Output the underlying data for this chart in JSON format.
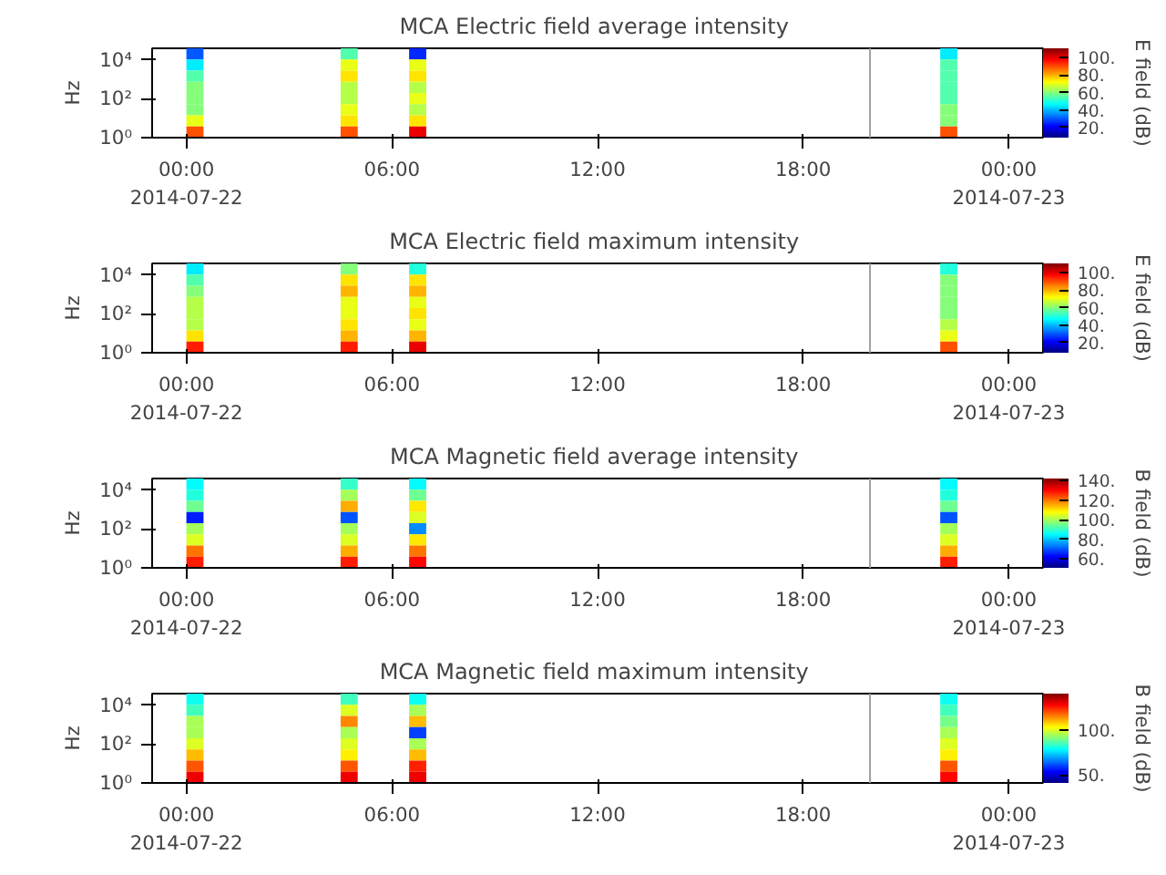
{
  "chart_data": [
    {
      "type": "heatmap",
      "title": "MCA  Electric field average intensity",
      "ylabel": "Hz",
      "clabel": "E field (dB)",
      "log": "y",
      "grid": false,
      "x": [
        -0.75,
        -0.25,
        0.25,
        0.75,
        1.25,
        1.75,
        2.25,
        2.75,
        3.25,
        3.75,
        4.25,
        4.75,
        5.25,
        5.75,
        6.25,
        6.75,
        7.25,
        7.75,
        8.25,
        8.75,
        9.25,
        9.75,
        10.25,
        10.75,
        11.25,
        11.75,
        12.25,
        12.75,
        13.25,
        13.75,
        14.25,
        14.75,
        15.25,
        15.75,
        16.25,
        16.75,
        17.25,
        17.75,
        18.25,
        18.75,
        19.25,
        19.75,
        20.25,
        20.75,
        21.25,
        21.75,
        22.25,
        22.75,
        23.25,
        23.75,
        24.25,
        24.75
      ],
      "xlim": [
        -1,
        25
      ],
      "xticks": [
        {
          "value": 0,
          "label": "00:00\n2014-07-22"
        },
        {
          "value": 6,
          "label": "06:00"
        },
        {
          "value": 12,
          "label": "12:00"
        },
        {
          "value": 18,
          "label": "18:00"
        },
        {
          "value": 24,
          "label": "00:00\n2014-07-23"
        }
      ],
      "ylim": [
        1,
        40000
      ],
      "yticks": [
        {
          "value": 1,
          "label": "10⁰"
        },
        {
          "value": 100,
          "label": "10²"
        },
        {
          "value": 10000,
          "label": "10⁴"
        }
      ],
      "clim": [
        8,
        111
      ],
      "cticks": [
        {
          "value": 20,
          "label": "20."
        },
        {
          "value": 40,
          "label": "40."
        },
        {
          "value": 60,
          "label": "60."
        },
        {
          "value": 80,
          "label": "80."
        },
        {
          "value": 100,
          "label": "100."
        }
      ],
      "ref_lines": [
        {
          "axis": "x",
          "value": 19.95,
          "color": "#a0a0a0"
        }
      ],
      "cells": [
        [
          null,
          null,
          30,
          null,
          null,
          null,
          null,
          null,
          null,
          null,
          null,
          55,
          null,
          null,
          null,
          25,
          null,
          null,
          null,
          null,
          null,
          null,
          null,
          null,
          null,
          null,
          null,
          null,
          null,
          null,
          null,
          null,
          null,
          null,
          null,
          null,
          null,
          null,
          null,
          null,
          null,
          null,
          null,
          null,
          null,
          null,
          45,
          null,
          null,
          null,
          null,
          null
        ],
        [
          null,
          null,
          45,
          null,
          null,
          null,
          null,
          null,
          null,
          null,
          null,
          70,
          null,
          null,
          null,
          70,
          null,
          null,
          null,
          null,
          null,
          null,
          null,
          null,
          null,
          null,
          null,
          null,
          null,
          null,
          null,
          null,
          null,
          null,
          null,
          null,
          null,
          null,
          null,
          null,
          null,
          null,
          null,
          null,
          null,
          null,
          55,
          null,
          null,
          null,
          null,
          null
        ],
        [
          null,
          null,
          55,
          null,
          null,
          null,
          null,
          null,
          null,
          null,
          null,
          75,
          null,
          null,
          null,
          75,
          null,
          null,
          null,
          null,
          null,
          null,
          null,
          null,
          null,
          null,
          null,
          null,
          null,
          null,
          null,
          null,
          null,
          null,
          null,
          null,
          null,
          null,
          null,
          null,
          null,
          null,
          null,
          null,
          null,
          null,
          55,
          null,
          null,
          null,
          null,
          null
        ],
        [
          null,
          null,
          60,
          null,
          null,
          null,
          null,
          null,
          null,
          null,
          null,
          65,
          null,
          null,
          null,
          65,
          null,
          null,
          null,
          null,
          null,
          null,
          null,
          null,
          null,
          null,
          null,
          null,
          null,
          null,
          null,
          null,
          null,
          null,
          null,
          null,
          null,
          null,
          null,
          null,
          null,
          null,
          null,
          null,
          null,
          null,
          55,
          null,
          null,
          null,
          null,
          null
        ],
        [
          null,
          null,
          60,
          null,
          null,
          null,
          null,
          null,
          null,
          null,
          null,
          65,
          null,
          null,
          null,
          70,
          null,
          null,
          null,
          null,
          null,
          null,
          null,
          null,
          null,
          null,
          null,
          null,
          null,
          null,
          null,
          null,
          null,
          null,
          null,
          null,
          null,
          null,
          null,
          null,
          null,
          null,
          null,
          null,
          null,
          null,
          55,
          null,
          null,
          null,
          null,
          null
        ],
        [
          null,
          null,
          60,
          null,
          null,
          null,
          null,
          null,
          null,
          null,
          null,
          70,
          null,
          null,
          null,
          65,
          null,
          null,
          null,
          null,
          null,
          null,
          null,
          null,
          null,
          null,
          null,
          null,
          null,
          null,
          null,
          null,
          null,
          null,
          null,
          null,
          null,
          null,
          null,
          null,
          null,
          null,
          null,
          null,
          null,
          null,
          60,
          null,
          null,
          null,
          null,
          null
        ],
        [
          null,
          null,
          70,
          null,
          null,
          null,
          null,
          null,
          null,
          null,
          null,
          75,
          null,
          null,
          null,
          75,
          null,
          null,
          null,
          null,
          null,
          null,
          null,
          null,
          null,
          null,
          null,
          null,
          null,
          null,
          null,
          null,
          null,
          null,
          null,
          null,
          null,
          null,
          null,
          null,
          null,
          null,
          null,
          null,
          null,
          null,
          60,
          null,
          null,
          null,
          null,
          null
        ],
        [
          null,
          null,
          90,
          null,
          null,
          null,
          null,
          null,
          null,
          null,
          null,
          90,
          null,
          null,
          null,
          100,
          null,
          null,
          null,
          null,
          null,
          null,
          null,
          null,
          null,
          null,
          null,
          null,
          null,
          null,
          null,
          null,
          null,
          null,
          null,
          null,
          null,
          null,
          null,
          null,
          null,
          null,
          null,
          null,
          null,
          null,
          90,
          null,
          null,
          null,
          null,
          null
        ]
      ]
    },
    {
      "type": "heatmap",
      "title": "MCA  Electric field maximum intensity",
      "ylabel": "Hz",
      "clabel": "E field (dB)",
      "log": "y",
      "grid": false,
      "x": [
        -0.75,
        -0.25,
        0.25,
        0.75,
        1.25,
        1.75,
        2.25,
        2.75,
        3.25,
        3.75,
        4.25,
        4.75,
        5.25,
        5.75,
        6.25,
        6.75,
        7.25,
        7.75,
        8.25,
        8.75,
        9.25,
        9.75,
        10.25,
        10.75,
        11.25,
        11.75,
        12.25,
        12.75,
        13.25,
        13.75,
        14.25,
        14.75,
        15.25,
        15.75,
        16.25,
        16.75,
        17.25,
        17.75,
        18.25,
        18.75,
        19.25,
        19.75,
        20.25,
        20.75,
        21.25,
        21.75,
        22.25,
        22.75,
        23.25,
        23.75,
        24.25,
        24.75
      ],
      "xlim": [
        -1,
        25
      ],
      "xticks": [
        {
          "value": 0,
          "label": "00:00\n2014-07-22"
        },
        {
          "value": 6,
          "label": "06:00"
        },
        {
          "value": 12,
          "label": "12:00"
        },
        {
          "value": 18,
          "label": "18:00"
        },
        {
          "value": 24,
          "label": "00:00\n2014-07-23"
        }
      ],
      "ylim": [
        1,
        40000
      ],
      "yticks": [
        {
          "value": 1,
          "label": "10⁰"
        },
        {
          "value": 100,
          "label": "10²"
        },
        {
          "value": 10000,
          "label": "10⁴"
        }
      ],
      "clim": [
        8,
        111
      ],
      "cticks": [
        {
          "value": 20,
          "label": "20."
        },
        {
          "value": 40,
          "label": "40."
        },
        {
          "value": 60,
          "label": "60."
        },
        {
          "value": 80,
          "label": "80."
        },
        {
          "value": 100,
          "label": "100."
        }
      ],
      "ref_lines": [
        {
          "axis": "x",
          "value": 19.95,
          "color": "#a0a0a0"
        }
      ],
      "cells": [
        [
          null,
          null,
          45,
          null,
          null,
          null,
          null,
          null,
          null,
          null,
          null,
          60,
          null,
          null,
          null,
          50,
          null,
          null,
          null,
          null,
          null,
          null,
          null,
          null,
          null,
          null,
          null,
          null,
          null,
          null,
          null,
          null,
          null,
          null,
          null,
          null,
          null,
          null,
          null,
          null,
          null,
          null,
          null,
          null,
          null,
          null,
          50,
          null,
          null,
          null,
          null,
          null
        ],
        [
          null,
          null,
          55,
          null,
          null,
          null,
          null,
          null,
          null,
          null,
          null,
          75,
          null,
          null,
          null,
          75,
          null,
          null,
          null,
          null,
          null,
          null,
          null,
          null,
          null,
          null,
          null,
          null,
          null,
          null,
          null,
          null,
          null,
          null,
          null,
          null,
          null,
          null,
          null,
          null,
          null,
          null,
          null,
          null,
          null,
          null,
          60,
          null,
          null,
          null,
          null,
          null
        ],
        [
          null,
          null,
          60,
          null,
          null,
          null,
          null,
          null,
          null,
          null,
          null,
          80,
          null,
          null,
          null,
          80,
          null,
          null,
          null,
          null,
          null,
          null,
          null,
          null,
          null,
          null,
          null,
          null,
          null,
          null,
          null,
          null,
          null,
          null,
          null,
          null,
          null,
          null,
          null,
          null,
          null,
          null,
          null,
          null,
          null,
          null,
          60,
          null,
          null,
          null,
          null,
          null
        ],
        [
          null,
          null,
          65,
          null,
          null,
          null,
          null,
          null,
          null,
          null,
          null,
          70,
          null,
          null,
          null,
          70,
          null,
          null,
          null,
          null,
          null,
          null,
          null,
          null,
          null,
          null,
          null,
          null,
          null,
          null,
          null,
          null,
          null,
          null,
          null,
          null,
          null,
          null,
          null,
          null,
          null,
          null,
          null,
          null,
          null,
          null,
          60,
          null,
          null,
          null,
          null,
          null
        ],
        [
          null,
          null,
          65,
          null,
          null,
          null,
          null,
          null,
          null,
          null,
          null,
          70,
          null,
          null,
          null,
          75,
          null,
          null,
          null,
          null,
          null,
          null,
          null,
          null,
          null,
          null,
          null,
          null,
          null,
          null,
          null,
          null,
          null,
          null,
          null,
          null,
          null,
          null,
          null,
          null,
          null,
          null,
          null,
          null,
          null,
          null,
          60,
          null,
          null,
          null,
          null,
          null
        ],
        [
          null,
          null,
          65,
          null,
          null,
          null,
          null,
          null,
          null,
          null,
          null,
          75,
          null,
          null,
          null,
          70,
          null,
          null,
          null,
          null,
          null,
          null,
          null,
          null,
          null,
          null,
          null,
          null,
          null,
          null,
          null,
          null,
          null,
          null,
          null,
          null,
          null,
          null,
          null,
          null,
          null,
          null,
          null,
          null,
          null,
          null,
          65,
          null,
          null,
          null,
          null,
          null
        ],
        [
          null,
          null,
          75,
          null,
          null,
          null,
          null,
          null,
          null,
          null,
          null,
          80,
          null,
          null,
          null,
          80,
          null,
          null,
          null,
          null,
          null,
          null,
          null,
          null,
          null,
          null,
          null,
          null,
          null,
          null,
          null,
          null,
          null,
          null,
          null,
          null,
          null,
          null,
          null,
          null,
          null,
          null,
          null,
          null,
          null,
          null,
          70,
          null,
          null,
          null,
          null,
          null
        ],
        [
          null,
          null,
          95,
          null,
          null,
          null,
          null,
          null,
          null,
          null,
          null,
          95,
          null,
          null,
          null,
          100,
          null,
          null,
          null,
          null,
          null,
          null,
          null,
          null,
          null,
          null,
          null,
          null,
          null,
          null,
          null,
          null,
          null,
          null,
          null,
          null,
          null,
          null,
          null,
          null,
          null,
          null,
          null,
          null,
          null,
          null,
          90,
          null,
          null,
          null,
          null,
          null
        ]
      ]
    },
    {
      "type": "heatmap",
      "title": "MCA  Magnetic field average intensity",
      "ylabel": "Hz",
      "clabel": "B field (dB)",
      "log": "y",
      "grid": false,
      "x": [
        -0.75,
        -0.25,
        0.25,
        0.75,
        1.25,
        1.75,
        2.25,
        2.75,
        3.25,
        3.75,
        4.25,
        4.75,
        5.25,
        5.75,
        6.25,
        6.75,
        7.25,
        7.75,
        8.25,
        8.75,
        9.25,
        9.75,
        10.25,
        10.75,
        11.25,
        11.75,
        12.25,
        12.75,
        13.25,
        13.75,
        14.25,
        14.75,
        15.25,
        15.75,
        16.25,
        16.75,
        17.25,
        17.75,
        18.25,
        18.75,
        19.25,
        19.75,
        20.25,
        20.75,
        21.25,
        21.75,
        22.25,
        22.75,
        23.25,
        23.75,
        24.25,
        24.75
      ],
      "xlim": [
        -1,
        25
      ],
      "xticks": [
        {
          "value": 0,
          "label": "00:00\n2014-07-22"
        },
        {
          "value": 6,
          "label": "06:00"
        },
        {
          "value": 12,
          "label": "12:00"
        },
        {
          "value": 18,
          "label": "18:00"
        },
        {
          "value": 24,
          "label": "00:00\n2014-07-23"
        }
      ],
      "ylim": [
        1,
        40000
      ],
      "yticks": [
        {
          "value": 1,
          "label": "10⁰"
        },
        {
          "value": 100,
          "label": "10²"
        },
        {
          "value": 10000,
          "label": "10⁴"
        }
      ],
      "clim": [
        51,
        142
      ],
      "cticks": [
        {
          "value": 60,
          "label": "60."
        },
        {
          "value": 80,
          "label": "80."
        },
        {
          "value": 100,
          "label": "100."
        },
        {
          "value": 120,
          "label": "120."
        },
        {
          "value": 140,
          "label": "140."
        }
      ],
      "ref_lines": [
        {
          "axis": "x",
          "value": 19.95,
          "color": "#a0a0a0"
        }
      ],
      "cells": [
        [
          null,
          null,
          85,
          null,
          null,
          null,
          null,
          null,
          null,
          null,
          null,
          90,
          null,
          null,
          null,
          85,
          null,
          null,
          null,
          null,
          null,
          null,
          null,
          null,
          null,
          null,
          null,
          null,
          null,
          null,
          null,
          null,
          null,
          null,
          null,
          null,
          null,
          null,
          null,
          null,
          null,
          null,
          null,
          null,
          null,
          null,
          85,
          null,
          null,
          null,
          null,
          null
        ],
        [
          null,
          null,
          88,
          null,
          null,
          null,
          null,
          null,
          null,
          null,
          null,
          100,
          null,
          null,
          null,
          95,
          null,
          null,
          null,
          null,
          null,
          null,
          null,
          null,
          null,
          null,
          null,
          null,
          null,
          null,
          null,
          null,
          null,
          null,
          null,
          null,
          null,
          null,
          null,
          null,
          null,
          null,
          null,
          null,
          null,
          null,
          88,
          null,
          null,
          null,
          null,
          null
        ],
        [
          null,
          null,
          95,
          null,
          null,
          null,
          null,
          null,
          null,
          null,
          null,
          115,
          null,
          null,
          null,
          110,
          null,
          null,
          null,
          null,
          null,
          null,
          null,
          null,
          null,
          null,
          null,
          null,
          null,
          null,
          null,
          null,
          null,
          null,
          null,
          null,
          null,
          null,
          null,
          null,
          null,
          null,
          null,
          null,
          null,
          null,
          95,
          null,
          null,
          null,
          null,
          null
        ],
        [
          null,
          null,
          65,
          null,
          null,
          null,
          null,
          null,
          null,
          null,
          null,
          70,
          null,
          null,
          null,
          105,
          null,
          null,
          null,
          null,
          null,
          null,
          null,
          null,
          null,
          null,
          null,
          null,
          null,
          null,
          null,
          null,
          null,
          null,
          null,
          null,
          null,
          null,
          null,
          null,
          null,
          null,
          null,
          null,
          null,
          null,
          70,
          null,
          null,
          null,
          null,
          null
        ],
        [
          null,
          null,
          100,
          null,
          null,
          null,
          null,
          null,
          null,
          null,
          null,
          100,
          null,
          null,
          null,
          75,
          null,
          null,
          null,
          null,
          null,
          null,
          null,
          null,
          null,
          null,
          null,
          null,
          null,
          null,
          null,
          null,
          null,
          null,
          null,
          null,
          null,
          null,
          null,
          null,
          null,
          null,
          null,
          null,
          null,
          null,
          100,
          null,
          null,
          null,
          null,
          null
        ],
        [
          null,
          null,
          105,
          null,
          null,
          null,
          null,
          null,
          null,
          null,
          null,
          105,
          null,
          null,
          null,
          110,
          null,
          null,
          null,
          null,
          null,
          null,
          null,
          null,
          null,
          null,
          null,
          null,
          null,
          null,
          null,
          null,
          null,
          null,
          null,
          null,
          null,
          null,
          null,
          null,
          null,
          null,
          null,
          null,
          null,
          null,
          105,
          null,
          null,
          null,
          null,
          null
        ],
        [
          null,
          null,
          120,
          null,
          null,
          null,
          null,
          null,
          null,
          null,
          null,
          115,
          null,
          null,
          null,
          120,
          null,
          null,
          null,
          null,
          null,
          null,
          null,
          null,
          null,
          null,
          null,
          null,
          null,
          null,
          null,
          null,
          null,
          null,
          null,
          null,
          null,
          null,
          null,
          null,
          null,
          null,
          null,
          null,
          null,
          null,
          115,
          null,
          null,
          null,
          null,
          null
        ],
        [
          null,
          null,
          128,
          null,
          null,
          null,
          null,
          null,
          null,
          null,
          null,
          128,
          null,
          null,
          null,
          130,
          null,
          null,
          null,
          null,
          null,
          null,
          null,
          null,
          null,
          null,
          null,
          null,
          null,
          null,
          null,
          null,
          null,
          null,
          null,
          null,
          null,
          null,
          null,
          null,
          null,
          null,
          null,
          null,
          null,
          null,
          128,
          null,
          null,
          null,
          null,
          null
        ]
      ]
    },
    {
      "type": "heatmap",
      "title": "MCA  Magnetic field maximum intensity",
      "ylabel": "Hz",
      "clabel": "B field (dB)",
      "log": "y",
      "grid": false,
      "x": [
        -0.75,
        -0.25,
        0.25,
        0.75,
        1.25,
        1.75,
        2.25,
        2.75,
        3.25,
        3.75,
        4.25,
        4.75,
        5.25,
        5.75,
        6.25,
        6.75,
        7.25,
        7.75,
        8.25,
        8.75,
        9.25,
        9.75,
        10.25,
        10.75,
        11.25,
        11.75,
        12.25,
        12.75,
        13.25,
        13.75,
        14.25,
        14.75,
        15.25,
        15.75,
        16.25,
        16.75,
        17.25,
        17.75,
        18.25,
        18.75,
        19.25,
        19.75,
        20.25,
        20.75,
        21.25,
        21.75,
        22.25,
        22.75,
        23.25,
        23.75,
        24.25,
        24.75
      ],
      "xlim": [
        -1,
        25
      ],
      "xticks": [
        {
          "value": 0,
          "label": "00:00\n2014-07-22"
        },
        {
          "value": 6,
          "label": "06:00"
        },
        {
          "value": 12,
          "label": "12:00"
        },
        {
          "value": 18,
          "label": "18:00"
        },
        {
          "value": 24,
          "label": "00:00\n2014-07-23"
        }
      ],
      "ylim": [
        1,
        40000
      ],
      "yticks": [
        {
          "value": 1,
          "label": "10⁰"
        },
        {
          "value": 100,
          "label": "10²"
        },
        {
          "value": 10000,
          "label": "10⁴"
        }
      ],
      "clim": [
        41,
        141
      ],
      "cticks": [
        {
          "value": 50,
          "label": "50."
        },
        {
          "value": 100,
          "label": "100."
        }
      ],
      "ref_lines": [
        {
          "axis": "x",
          "value": 19.95,
          "color": "#a0a0a0"
        }
      ],
      "cells": [
        [
          null,
          null,
          80,
          null,
          null,
          null,
          null,
          null,
          null,
          null,
          null,
          85,
          null,
          null,
          null,
          80,
          null,
          null,
          null,
          null,
          null,
          null,
          null,
          null,
          null,
          null,
          null,
          null,
          null,
          null,
          null,
          null,
          null,
          null,
          null,
          null,
          null,
          null,
          null,
          null,
          null,
          null,
          null,
          null,
          null,
          null,
          80,
          null,
          null,
          null,
          null,
          null
        ],
        [
          null,
          null,
          85,
          null,
          null,
          null,
          null,
          null,
          null,
          null,
          null,
          100,
          null,
          null,
          null,
          95,
          null,
          null,
          null,
          null,
          null,
          null,
          null,
          null,
          null,
          null,
          null,
          null,
          null,
          null,
          null,
          null,
          null,
          null,
          null,
          null,
          null,
          null,
          null,
          null,
          null,
          null,
          null,
          null,
          null,
          null,
          85,
          null,
          null,
          null,
          null,
          null
        ],
        [
          null,
          null,
          95,
          null,
          null,
          null,
          null,
          null,
          null,
          null,
          null,
          115,
          null,
          null,
          null,
          110,
          null,
          null,
          null,
          null,
          null,
          null,
          null,
          null,
          null,
          null,
          null,
          null,
          null,
          null,
          null,
          null,
          null,
          null,
          null,
          null,
          null,
          null,
          null,
          null,
          null,
          null,
          null,
          null,
          null,
          null,
          90,
          null,
          null,
          null,
          null,
          null
        ],
        [
          null,
          null,
          95,
          null,
          null,
          null,
          null,
          null,
          null,
          null,
          null,
          95,
          null,
          null,
          null,
          60,
          null,
          null,
          null,
          null,
          null,
          null,
          null,
          null,
          null,
          null,
          null,
          null,
          null,
          null,
          null,
          null,
          null,
          null,
          null,
          null,
          null,
          null,
          null,
          null,
          null,
          null,
          null,
          null,
          null,
          null,
          95,
          null,
          null,
          null,
          null,
          null
        ],
        [
          null,
          null,
          100,
          null,
          null,
          null,
          null,
          null,
          null,
          null,
          null,
          100,
          null,
          null,
          null,
          95,
          null,
          null,
          null,
          null,
          null,
          null,
          null,
          null,
          null,
          null,
          null,
          null,
          null,
          null,
          null,
          null,
          null,
          null,
          null,
          null,
          null,
          null,
          null,
          null,
          null,
          null,
          null,
          null,
          null,
          null,
          100,
          null,
          null,
          null,
          null,
          null
        ],
        [
          null,
          null,
          110,
          null,
          null,
          null,
          null,
          null,
          null,
          null,
          null,
          105,
          null,
          null,
          null,
          110,
          null,
          null,
          null,
          null,
          null,
          null,
          null,
          null,
          null,
          null,
          null,
          null,
          null,
          null,
          null,
          null,
          null,
          null,
          null,
          null,
          null,
          null,
          null,
          null,
          null,
          null,
          null,
          null,
          null,
          null,
          105,
          null,
          null,
          null,
          null,
          null
        ],
        [
          null,
          null,
          120,
          null,
          null,
          null,
          null,
          null,
          null,
          null,
          null,
          120,
          null,
          null,
          null,
          125,
          null,
          null,
          null,
          null,
          null,
          null,
          null,
          null,
          null,
          null,
          null,
          null,
          null,
          null,
          null,
          null,
          null,
          null,
          null,
          null,
          null,
          null,
          null,
          null,
          null,
          null,
          null,
          null,
          null,
          null,
          120,
          null,
          null,
          null,
          null,
          null
        ],
        [
          null,
          null,
          130,
          null,
          null,
          null,
          null,
          null,
          null,
          null,
          null,
          130,
          null,
          null,
          null,
          130,
          null,
          null,
          null,
          null,
          null,
          null,
          null,
          null,
          null,
          null,
          null,
          null,
          null,
          null,
          null,
          null,
          null,
          null,
          null,
          null,
          null,
          null,
          null,
          null,
          null,
          null,
          null,
          null,
          null,
          null,
          128,
          null,
          null,
          null,
          null,
          null
        ]
      ]
    }
  ]
}
